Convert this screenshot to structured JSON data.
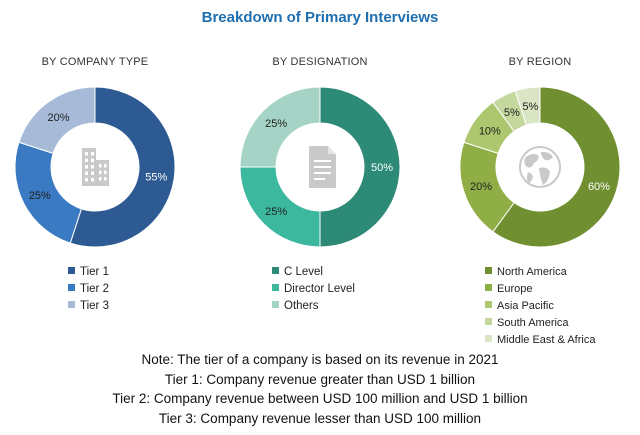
{
  "title": "Breakdown of Primary Interviews",
  "chart_data": [
    {
      "type": "pie",
      "title": "BY COMPANY TYPE",
      "categories": [
        "Tier 1",
        "Tier 2",
        "Tier 3"
      ],
      "values": [
        55,
        25,
        20
      ],
      "labels": [
        "55%",
        "25%",
        "20%"
      ],
      "colors": [
        "#2e5a93",
        "#3a7ac2",
        "#a7bbd8"
      ],
      "center_icon": "building-icon",
      "legend": "bottom"
    },
    {
      "type": "pie",
      "title": "BY DESIGNATION",
      "categories": [
        "C Level",
        "Director Level",
        "Others"
      ],
      "values": [
        50,
        25,
        25
      ],
      "labels": [
        "50%",
        "25%",
        "25%"
      ],
      "colors": [
        "#2c8a76",
        "#3bb89e",
        "#a5d3c6"
      ],
      "center_icon": "document-icon",
      "legend": "bottom"
    },
    {
      "type": "pie",
      "title": "BY REGION",
      "categories": [
        "North America",
        "Europe",
        "Asia Pacific",
        "South America",
        "Middle East & Africa"
      ],
      "values": [
        60,
        20,
        10,
        5,
        5
      ],
      "labels": [
        "60%",
        "20%",
        "10%",
        "5%",
        "5%"
      ],
      "colors": [
        "#6f8f31",
        "#8fae45",
        "#acc76e",
        "#c4d79d",
        "#dae6c3"
      ],
      "center_icon": "globe-icon",
      "legend": "bottom"
    }
  ],
  "notes": [
    "Note: The tier of a company is based on its revenue in 2021",
    "Tier 1: Company revenue greater than USD 1 billion",
    "Tier 2: Company revenue between  USD 100 million and USD 1 billion",
    "Tier 3: Company revenue lesser than USD 100 million"
  ]
}
